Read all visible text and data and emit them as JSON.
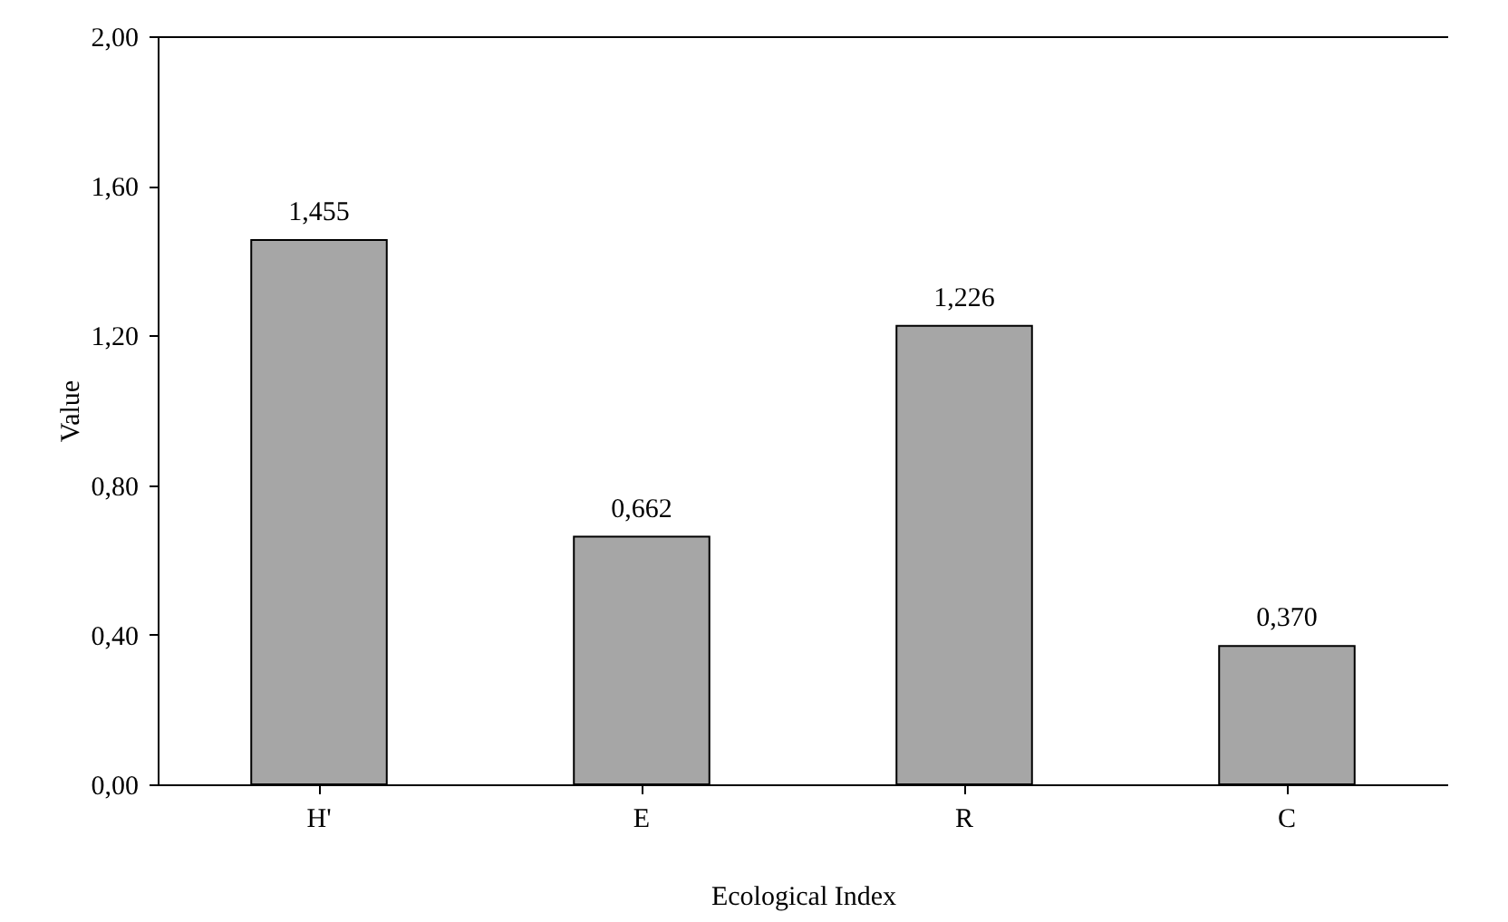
{
  "chart_data": {
    "type": "bar",
    "xlabel": "Ecological Index",
    "ylabel": "Value",
    "categories": [
      "H'",
      "E",
      "R",
      "C"
    ],
    "values": [
      1.455,
      0.662,
      1.226,
      0.37
    ],
    "value_labels": [
      "1,455",
      "0,662",
      "1,226",
      "0,370"
    ],
    "color": "#a6a6a6",
    "ylim": [
      0,
      2
    ],
    "yticks": [
      {
        "value": 0,
        "label": "0,00"
      },
      {
        "value": 0.4,
        "label": "0,40"
      },
      {
        "value": 0.8,
        "label": "0,80"
      },
      {
        "value": 1.2,
        "label": "1,20"
      },
      {
        "value": 1.6,
        "label": "1,60"
      },
      {
        "value": 2,
        "label": "2,00"
      }
    ],
    "grid": false
  }
}
